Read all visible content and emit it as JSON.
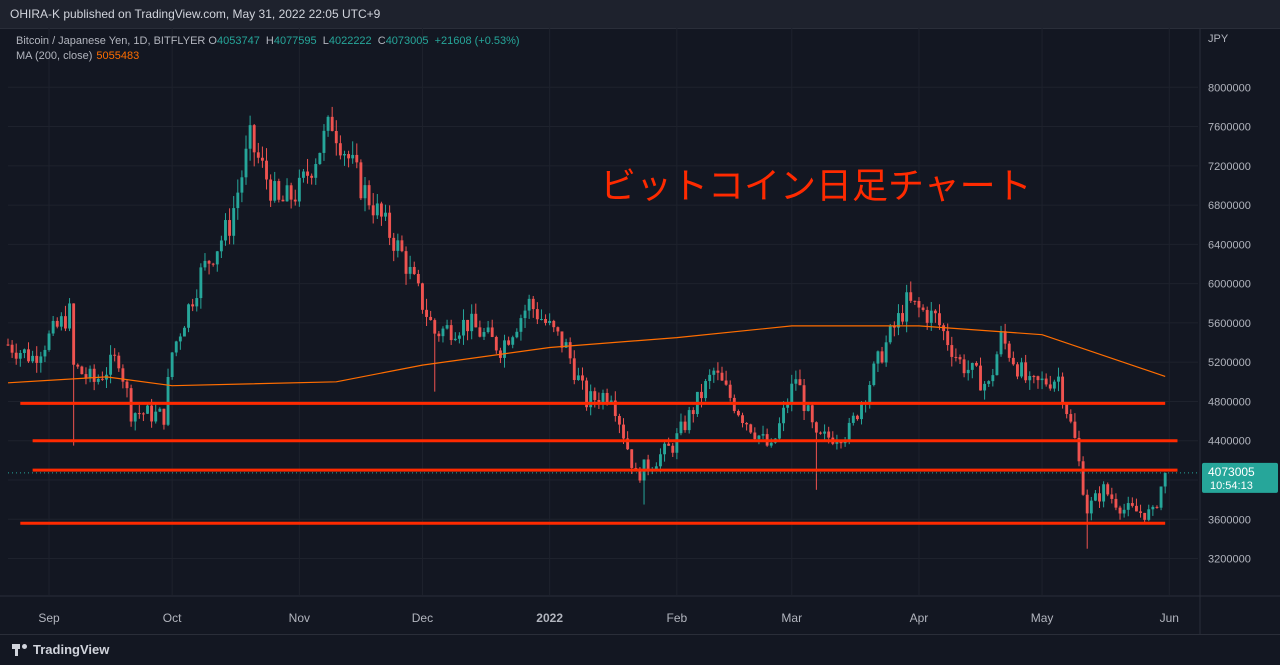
{
  "header": {
    "publisher": "OHIRA-K published on TradingView.com, May 31, 2022 22:05 UTC+9"
  },
  "legend": {
    "symbol": "Bitcoin / Japanese Yen, 1D, BITFLYER",
    "open_key": "O",
    "open": "4053747",
    "high_key": "H",
    "high": "4077595",
    "low_key": "L",
    "low": "4022222",
    "close_key": "C",
    "close": "4073005",
    "change": "+21608 (+0.53%)",
    "ma_label": "MA (200, close)",
    "ma_value": "5055483"
  },
  "footer": {
    "brand": "TradingView"
  },
  "colors": {
    "background": "#131722",
    "up": "#26a69a",
    "down": "#ef5350",
    "ma": "#ff6d00",
    "annotation": "#ff2a00",
    "grid": "#1e222d"
  },
  "chart_data": {
    "type": "candlestick",
    "currency_label": "JPY",
    "ylim": [
      2900000,
      8400000
    ],
    "y_ticks": [
      3200000,
      3600000,
      4000000,
      4400000,
      4800000,
      5200000,
      5600000,
      6000000,
      6400000,
      6800000,
      7200000,
      7600000,
      8000000
    ],
    "x_start": "2021-08-22",
    "x_end": "2022-06-08",
    "x_ticks": [
      {
        "date": "2021-09-01",
        "label": "Sep"
      },
      {
        "date": "2021-10-01",
        "label": "Oct"
      },
      {
        "date": "2021-11-01",
        "label": "Nov"
      },
      {
        "date": "2021-12-01",
        "label": "Dec"
      },
      {
        "date": "2022-01-01",
        "label": "2022"
      },
      {
        "date": "2022-02-01",
        "label": "Feb"
      },
      {
        "date": "2022-03-01",
        "label": "Mar"
      },
      {
        "date": "2022-04-01",
        "label": "Apr"
      },
      {
        "date": "2022-05-01",
        "label": "May"
      },
      {
        "date": "2022-06-01",
        "label": "Jun"
      }
    ],
    "price_anchors": [
      {
        "date": "2021-08-22",
        "close": 5380000
      },
      {
        "date": "2021-08-28",
        "close": 5250000
      },
      {
        "date": "2021-09-06",
        "close": 5700000
      },
      {
        "date": "2021-09-07",
        "close": 5150000
      },
      {
        "date": "2021-09-12",
        "close": 5000000
      },
      {
        "date": "2021-09-18",
        "close": 5250000
      },
      {
        "date": "2021-09-21",
        "close": 4700000
      },
      {
        "date": "2021-09-29",
        "close": 4650000
      },
      {
        "date": "2021-10-01",
        "close": 5300000
      },
      {
        "date": "2021-10-08",
        "close": 6100000
      },
      {
        "date": "2021-10-15",
        "close": 6600000
      },
      {
        "date": "2021-10-20",
        "close": 7450000
      },
      {
        "date": "2021-10-27",
        "close": 6800000
      },
      {
        "date": "2021-11-01",
        "close": 6950000
      },
      {
        "date": "2021-11-09",
        "close": 7650000
      },
      {
        "date": "2021-11-16",
        "close": 7000000
      },
      {
        "date": "2021-11-19",
        "close": 6800000
      },
      {
        "date": "2021-11-26",
        "close": 6300000
      },
      {
        "date": "2021-12-04",
        "close": 5500000
      },
      {
        "date": "2021-12-12",
        "close": 5600000
      },
      {
        "date": "2021-12-20",
        "close": 5350000
      },
      {
        "date": "2021-12-27",
        "close": 5800000
      },
      {
        "date": "2022-01-05",
        "close": 5350000
      },
      {
        "date": "2022-01-10",
        "close": 4800000
      },
      {
        "date": "2022-01-16",
        "close": 4900000
      },
      {
        "date": "2022-01-22",
        "close": 4050000
      },
      {
        "date": "2022-01-31",
        "close": 4350000
      },
      {
        "date": "2022-02-10",
        "close": 5100000
      },
      {
        "date": "2022-02-17",
        "close": 4650000
      },
      {
        "date": "2022-02-24",
        "close": 4300000
      },
      {
        "date": "2022-03-02",
        "close": 5050000
      },
      {
        "date": "2022-03-07",
        "close": 4400000
      },
      {
        "date": "2022-03-15",
        "close": 4500000
      },
      {
        "date": "2022-03-23",
        "close": 5300000
      },
      {
        "date": "2022-03-29",
        "close": 5800000
      },
      {
        "date": "2022-04-05",
        "close": 5650000
      },
      {
        "date": "2022-04-11",
        "close": 5200000
      },
      {
        "date": "2022-04-18",
        "close": 4950000
      },
      {
        "date": "2022-04-21",
        "close": 5450000
      },
      {
        "date": "2022-04-28",
        "close": 4950000
      },
      {
        "date": "2022-05-05",
        "close": 5050000
      },
      {
        "date": "2022-05-09",
        "close": 4400000
      },
      {
        "date": "2022-05-12",
        "close": 3700000
      },
      {
        "date": "2022-05-16",
        "close": 3900000
      },
      {
        "date": "2022-05-21",
        "close": 3700000
      },
      {
        "date": "2022-05-28",
        "close": 3650000
      },
      {
        "date": "2022-05-31",
        "close": 4073005
      }
    ],
    "ma_200": [
      {
        "date": "2021-08-22",
        "value": 4990000
      },
      {
        "date": "2021-09-15",
        "value": 5050000
      },
      {
        "date": "2021-10-01",
        "value": 4960000
      },
      {
        "date": "2021-11-10",
        "value": 5000000
      },
      {
        "date": "2021-12-01",
        "value": 5170000
      },
      {
        "date": "2022-01-01",
        "value": 5350000
      },
      {
        "date": "2022-02-01",
        "value": 5450000
      },
      {
        "date": "2022-03-01",
        "value": 5570000
      },
      {
        "date": "2022-04-01",
        "value": 5570000
      },
      {
        "date": "2022-05-01",
        "value": 5480000
      },
      {
        "date": "2022-05-31",
        "value": 5055483
      }
    ],
    "last_price": "4073005",
    "countdown": "10:54:13",
    "annotation": "ビットコイン日足チャート",
    "horizontal_lines": [
      {
        "start": "2021-08-25",
        "end": "2022-05-31",
        "price": 4780000
      },
      {
        "start": "2021-08-28",
        "end": "2022-06-03",
        "price": 4400000
      },
      {
        "start": "2021-08-28",
        "end": "2022-06-03",
        "price": 4100000
      },
      {
        "start": "2021-08-25",
        "end": "2022-05-31",
        "price": 3560000
      }
    ]
  }
}
